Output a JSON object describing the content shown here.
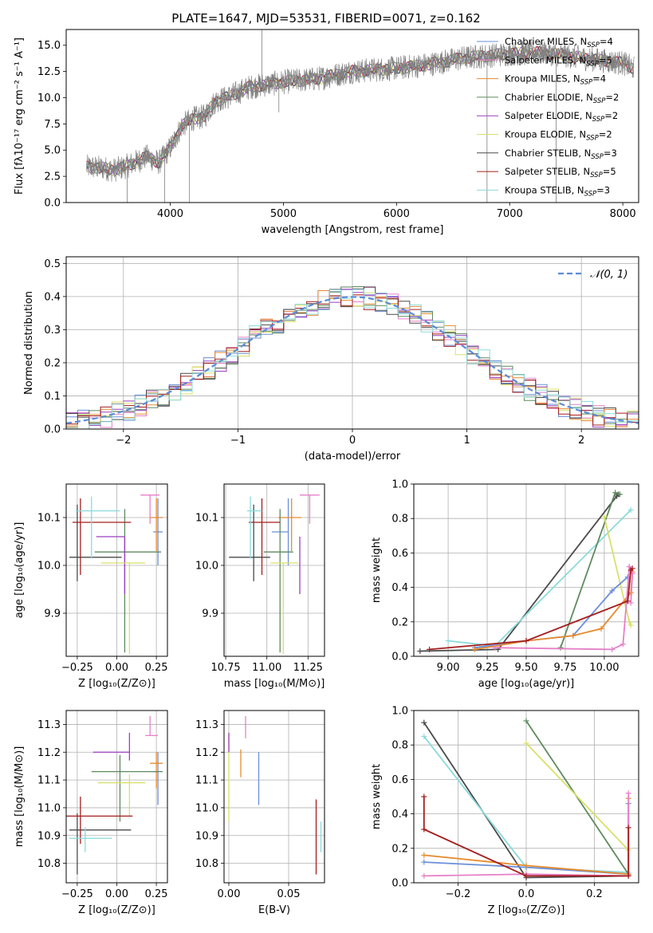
{
  "chart_data": [
    {
      "id": "spectrum",
      "type": "line",
      "title": "PLATE=1647, MJD=53531, FIBERID=0071, z=0.162",
      "xlabel": "wavelength [Angstrom, rest frame]",
      "ylabel": "Flux [fλ10⁻¹⁷ erg cm⁻² s⁻¹ A⁻¹]",
      "xlim": [
        3080,
        8140
      ],
      "ylim": [
        0,
        16.5
      ],
      "xticks": [
        "4000",
        "5000",
        "6000",
        "7000",
        "8000"
      ],
      "yticks": [
        "0.0",
        "2.5",
        "5.0",
        "7.5",
        "10.0",
        "12.5",
        "15.0"
      ],
      "grid": false,
      "legend_position": "right",
      "continuum": {
        "x": [
          3260,
          3400,
          3500,
          3600,
          3700,
          3800,
          3900,
          4000,
          4100,
          4200,
          4300,
          4400,
          4500,
          4700,
          5000,
          5300,
          5600,
          6000,
          6300,
          6600,
          7000,
          7300,
          7700,
          8000,
          8100
        ],
        "y": [
          3.4,
          3.3,
          3.1,
          3.4,
          3.9,
          4.4,
          3.8,
          5.2,
          7.3,
          8.0,
          8.2,
          9.7,
          10.0,
          11.0,
          11.5,
          11.8,
          12.5,
          12.8,
          13.2,
          13.8,
          14.2,
          14.3,
          13.7,
          13.3,
          12.8
        ]
      },
      "spikes": [
        {
          "x": 3950,
          "y": 0.0
        },
        {
          "x": 4170,
          "y": 0.0
        },
        {
          "x": 4810,
          "y": 16.5
        },
        {
          "x": 4960,
          "y": 8.6
        },
        {
          "x": 6800,
          "y": 0.0
        },
        {
          "x": 7410,
          "y": 0.0
        },
        {
          "x": 3620,
          "y": 0.0
        }
      ],
      "legend": [
        {
          "label": "Chabrier MILES, N",
          "sub": "SSP",
          "tail": "=4",
          "color": "#6a8fd8"
        },
        {
          "label": "Salpeter MILES, N",
          "sub": "SSP",
          "tail": "=5",
          "color": "#e77fc7"
        },
        {
          "label": "Kroupa MILES, N",
          "sub": "SSP",
          "tail": "=4",
          "color": "#e68a2e"
        },
        {
          "label": "Chabrier ELODIE, N",
          "sub": "SSP",
          "tail": "=2",
          "color": "#5e8a5e"
        },
        {
          "label": "Salpeter ELODIE, N",
          "sub": "SSP",
          "tail": "=2",
          "color": "#9b3fbf"
        },
        {
          "label": "Kroupa ELODIE, N",
          "sub": "SSP",
          "tail": "=2",
          "color": "#d8e06a"
        },
        {
          "label": "Chabrier STELIB, N",
          "sub": "SSP",
          "tail": "=3",
          "color": "#4a4a4a"
        },
        {
          "label": "Salpeter STELIB, N",
          "sub": "SSP",
          "tail": "=5",
          "color": "#a51d1d"
        },
        {
          "label": "Kroupa STELIB, N",
          "sub": "SSP",
          "tail": "=3",
          "color": "#8adada"
        }
      ]
    },
    {
      "id": "residuals",
      "type": "line",
      "xlabel": "(data-model)/error",
      "ylabel": "Normed distribution",
      "xlim": [
        -2.5,
        2.5
      ],
      "ylim": [
        0,
        0.52
      ],
      "xticks": [
        "−2",
        "−1",
        "0",
        "1",
        "2"
      ],
      "yticks": [
        "0.0",
        "0.1",
        "0.2",
        "0.3",
        "0.4",
        "0.5"
      ],
      "grid": true,
      "legend_label": "𝒩(0, 1)",
      "legend_position": "top-right",
      "gaussian": {
        "mean": 0.0,
        "sigma": 1.0,
        "peak": 0.3989
      },
      "bin_width": 0.1
    },
    {
      "id": "age-z",
      "type": "scatter",
      "xlabel": "Z [log₁₀(Z/Z⊙)]",
      "ylabel": "age  [log₁₀(age/yr)]",
      "xlim": [
        -0.32,
        0.32
      ],
      "ylim": [
        9.81,
        10.17
      ],
      "xticks": [
        "−0.25",
        "0.00",
        "0.25"
      ],
      "yticks": [
        "9.9",
        "10.0",
        "10.1"
      ],
      "grid": true,
      "points": [
        {
          "x": 0.26,
          "xerr": [
            0.03,
            0.03
          ],
          "y": 10.07,
          "yerr": [
            0.07,
            0.07
          ],
          "color": "#6a8fd8"
        },
        {
          "x": 0.21,
          "xerr": [
            0.06,
            0.06
          ],
          "y": 10.147,
          "yerr": [
            0.06,
            0.0
          ],
          "color": "#e77fc7"
        },
        {
          "x": 0.25,
          "xerr": [
            0.04,
            0.04
          ],
          "y": 10.1,
          "yerr": [
            0.07,
            0.04
          ],
          "color": "#e68a2e"
        },
        {
          "x": 0.05,
          "xerr": [
            0.19,
            0.23
          ],
          "y": 10.028,
          "yerr": [
            0.21,
            0.09
          ],
          "color": "#5e8a5e"
        },
        {
          "x": 0.05,
          "xerr": [
            0.18,
            0.0
          ],
          "y": 10.06,
          "yerr": [
            0.12,
            0.0
          ],
          "color": "#9b3fbf"
        },
        {
          "x": 0.08,
          "xerr": [
            0.18,
            0.1
          ],
          "y": 10.005,
          "yerr": [
            0.19,
            0.0
          ],
          "color": "#d8e06a"
        },
        {
          "x": -0.25,
          "xerr": [
            0.05,
            0.28
          ],
          "y": 10.017,
          "yerr": [
            0.05,
            0.11
          ],
          "color": "#4a4a4a"
        },
        {
          "x": -0.23,
          "xerr": [
            0.05,
            0.32
          ],
          "y": 10.09,
          "yerr": [
            0.11,
            0.05
          ],
          "color": "#a51d1d"
        },
        {
          "x": -0.16,
          "xerr": [
            0.1,
            0.18
          ],
          "y": 10.114,
          "yerr": [
            0.1,
            0.03
          ],
          "color": "#8adada"
        }
      ]
    },
    {
      "id": "age-mass",
      "type": "scatter",
      "xlabel": "mass [log₁₀(M/M⊙)]",
      "ylabel": "",
      "xlim": [
        10.74,
        11.35
      ],
      "ylim": [
        9.81,
        10.17
      ],
      "xticks": [
        "10.75",
        "11.00",
        "11.25"
      ],
      "yticks": [
        "9.9",
        "10.0",
        "10.1"
      ],
      "grid": true,
      "points": [
        {
          "x": 11.13,
          "xerr": [
            0.1,
            0.0
          ],
          "y": 10.07,
          "yerr": [
            0.07,
            0.07
          ],
          "color": "#6a8fd8"
        },
        {
          "x": 11.26,
          "xerr": [
            0.06,
            0.06
          ],
          "y": 10.147,
          "yerr": [
            0.06,
            0.0
          ],
          "color": "#e77fc7"
        },
        {
          "x": 11.15,
          "xerr": [
            0.08,
            0.06
          ],
          "y": 10.1,
          "yerr": [
            0.07,
            0.04
          ],
          "color": "#e68a2e"
        },
        {
          "x": 11.08,
          "xerr": [
            0.1,
            0.08
          ],
          "y": 10.028,
          "yerr": [
            0.21,
            0.09
          ],
          "color": "#5e8a5e"
        },
        {
          "x": 11.2,
          "xerr": [
            0.0,
            0.0
          ],
          "y": 10.06,
          "yerr": [
            0.12,
            0.0
          ],
          "color": "#9b3fbf"
        },
        {
          "x": 11.1,
          "xerr": [
            0.08,
            0.09
          ],
          "y": 10.005,
          "yerr": [
            0.19,
            0.0
          ],
          "color": "#d8e06a"
        },
        {
          "x": 10.92,
          "xerr": [
            0.15,
            0.1
          ],
          "y": 10.017,
          "yerr": [
            0.05,
            0.11
          ],
          "color": "#4a4a4a"
        },
        {
          "x": 10.97,
          "xerr": [
            0.08,
            0.11
          ],
          "y": 10.09,
          "yerr": [
            0.11,
            0.05
          ],
          "color": "#a51d1d"
        },
        {
          "x": 10.9,
          "xerr": [
            0.02,
            0.07
          ],
          "y": 10.114,
          "yerr": [
            0.1,
            0.03
          ],
          "color": "#8adada"
        }
      ]
    },
    {
      "id": "weight-age",
      "type": "line",
      "xlabel": "age  [log₁₀(age/yr)]",
      "ylabel": "mass weight",
      "xlim": [
        8.78,
        10.22
      ],
      "ylim": [
        0,
        1.0
      ],
      "xticks": [
        "9.00",
        "9.25",
        "9.50",
        "9.75",
        "10.00"
      ],
      "yticks": [
        "0.0",
        "0.2",
        "0.4",
        "0.6",
        "0.8",
        "1.0"
      ],
      "grid": true,
      "series": [
        {
          "color": "#4a4a4a",
          "x": [
            8.82,
            9.32,
            10.08,
            10.09
          ],
          "y": [
            0.03,
            0.04,
            0.93,
            0.94
          ]
        },
        {
          "color": "#8adada",
          "x": [
            9.0,
            9.3,
            10.17
          ],
          "y": [
            0.09,
            0.06,
            0.85
          ]
        },
        {
          "color": "#5e8a5e",
          "x": [
            9.72,
            10.07,
            10.1
          ],
          "y": [
            0.05,
            0.95,
            0.94
          ]
        },
        {
          "color": "#d8e06a",
          "x": [
            10.0,
            10.16,
            10.17
          ],
          "y": [
            0.81,
            0.2,
            0.18
          ]
        },
        {
          "color": "#6a8fd8",
          "x": [
            9.17,
            9.5,
            9.8,
            10.05,
            10.15
          ],
          "y": [
            0.05,
            0.09,
            0.12,
            0.38,
            0.46
          ]
        },
        {
          "color": "#e68a2e",
          "x": [
            9.17,
            9.5,
            9.8,
            9.98,
            10.17,
            10.18
          ],
          "y": [
            0.04,
            0.09,
            0.12,
            0.16,
            0.37,
            0.49
          ]
        },
        {
          "color": "#e77fc7",
          "x": [
            9.3,
            10.05,
            10.12,
            10.16,
            10.18,
            10.17
          ],
          "y": [
            0.05,
            0.04,
            0.07,
            0.52,
            0.48,
            0.31
          ]
        },
        {
          "color": "#a51d1d",
          "x": [
            8.88,
            9.5,
            10.15,
            10.17,
            10.18
          ],
          "y": [
            0.04,
            0.09,
            0.32,
            0.5,
            0.51
          ]
        }
      ]
    },
    {
      "id": "mass-z",
      "type": "scatter",
      "xlabel": "Z [log₁₀(Z/Z⊙)]",
      "ylabel": "mass [log₁₀(M/M⊙)]",
      "xlim": [
        -0.32,
        0.32
      ],
      "ylim": [
        10.73,
        11.35
      ],
      "xticks": [
        "−0.25",
        "0.00",
        "0.25"
      ],
      "yticks": [
        "10.8",
        "10.9",
        "11.0",
        "11.1",
        "11.2",
        "11.3"
      ],
      "grid": true,
      "points": [
        {
          "x": 0.26,
          "xerr": [
            0.03,
            0.0
          ],
          "y": 11.13,
          "yerr": [
            0.12,
            0.07
          ],
          "color": "#6a8fd8"
        },
        {
          "x": 0.21,
          "xerr": [
            0.03,
            0.05
          ],
          "y": 11.26,
          "yerr": [
            0.0,
            0.07
          ],
          "color": "#e77fc7"
        },
        {
          "x": 0.25,
          "xerr": [
            0.04,
            0.04
          ],
          "y": 11.16,
          "yerr": [
            0.09,
            0.04
          ],
          "color": "#e68a2e"
        },
        {
          "x": 0.02,
          "xerr": [
            0.18,
            0.27
          ],
          "y": 11.13,
          "yerr": [
            0.18,
            0.06
          ],
          "color": "#5e8a5e"
        },
        {
          "x": 0.08,
          "xerr": [
            0.23,
            0.0
          ],
          "y": 11.2,
          "yerr": [
            0.03,
            0.07
          ],
          "color": "#9b3fbf"
        },
        {
          "x": 0.08,
          "xerr": [
            0.2,
            0.1
          ],
          "y": 11.09,
          "yerr": [
            0.12,
            0.03
          ],
          "color": "#d8e06a"
        },
        {
          "x": -0.25,
          "xerr": [
            0.05,
            0.34
          ],
          "y": 10.92,
          "yerr": [
            0.16,
            0.06
          ],
          "color": "#4a4a4a"
        },
        {
          "x": -0.23,
          "xerr": [
            0.1,
            0.33
          ],
          "y": 10.97,
          "yerr": [
            0.1,
            0.07
          ],
          "color": "#a51d1d"
        },
        {
          "x": -0.2,
          "xerr": [
            0.1,
            0.17
          ],
          "y": 10.89,
          "yerr": [
            0.05,
            0.04
          ],
          "color": "#8adada"
        }
      ]
    },
    {
      "id": "mass-ebv",
      "type": "scatter",
      "xlabel": "E(B-V)",
      "ylabel": "",
      "xlim": [
        -0.004,
        0.08
      ],
      "ylim": [
        10.73,
        11.35
      ],
      "xticks": [
        "0.00",
        "0.05"
      ],
      "yticks": [
        "10.8",
        "10.9",
        "11.0",
        "11.1",
        "11.2",
        "11.3"
      ],
      "grid": true,
      "points": [
        {
          "x": 0.0,
          "xerr": [
            0.0,
            0.0
          ],
          "y": 11.1,
          "yerr": [
            0.15,
            0.17
          ],
          "color": "#d8e06a"
        },
        {
          "x": 0.0,
          "xerr": [
            0.0,
            0.0
          ],
          "y": 11.2,
          "yerr": [
            0.0,
            0.07
          ],
          "color": "#9b3fbf"
        },
        {
          "x": 0.01,
          "xerr": [
            0.0,
            0.0
          ],
          "y": 11.11,
          "yerr": [
            0.0,
            0.1
          ],
          "color": "#e68a2e"
        },
        {
          "x": 0.014,
          "xerr": [
            0.0,
            0.0
          ],
          "y": 11.25,
          "yerr": [
            0.0,
            0.08
          ],
          "color": "#e77fc7"
        },
        {
          "x": 0.025,
          "xerr": [
            0.0,
            0.0
          ],
          "y": 11.1,
          "yerr": [
            0.09,
            0.1
          ],
          "color": "#6a8fd8"
        },
        {
          "x": 0.073,
          "xerr": [
            0.0,
            0.0
          ],
          "y": 10.93,
          "yerr": [
            0.17,
            0.1
          ],
          "color": "#a51d1d"
        },
        {
          "x": 0.077,
          "xerr": [
            0.0,
            0.0
          ],
          "y": 10.89,
          "yerr": [
            0.05,
            0.06
          ],
          "color": "#8adada"
        }
      ]
    },
    {
      "id": "weight-z",
      "type": "line",
      "xlabel": "Z [log₁₀(Z/Z⊙)]",
      "ylabel": "mass weight",
      "xlim": [
        -0.33,
        0.33
      ],
      "ylim": [
        0,
        1.0
      ],
      "xticks": [
        "−0.2",
        "0.0",
        "0.2"
      ],
      "yticks": [
        "0.0",
        "0.2",
        "0.4",
        "0.6",
        "0.8",
        "1.0"
      ],
      "grid": true,
      "series": [
        {
          "color": "#4a4a4a",
          "x": [
            -0.3,
            0.0,
            0.3
          ],
          "y": [
            0.93,
            0.03,
            0.04
          ]
        },
        {
          "color": "#8adada",
          "x": [
            -0.3,
            0.0,
            0.3
          ],
          "y": [
            0.85,
            0.09,
            0.06
          ]
        },
        {
          "color": "#5e8a5e",
          "x": [
            0.0,
            0.3
          ],
          "y": [
            0.94,
            0.05
          ]
        },
        {
          "color": "#d8e06a",
          "x": [
            0.0,
            0.3
          ],
          "y": [
            0.81,
            0.19
          ]
        },
        {
          "color": "#6a8fd8",
          "x": [
            -0.3,
            0.0,
            0.3,
            0.3
          ],
          "y": [
            0.12,
            0.09,
            0.05,
            0.46
          ]
        },
        {
          "color": "#e68a2e",
          "x": [
            -0.3,
            0.0,
            0.3,
            0.3
          ],
          "y": [
            0.16,
            0.1,
            0.05,
            0.49
          ]
        },
        {
          "color": "#e77fc7",
          "x": [
            -0.3,
            0.0,
            0.3,
            0.3
          ],
          "y": [
            0.04,
            0.05,
            0.04,
            0.52
          ]
        },
        {
          "color": "#a51d1d",
          "x": [
            -0.3,
            -0.3,
            0.0,
            0.3,
            0.3
          ],
          "y": [
            0.5,
            0.31,
            0.04,
            0.04,
            0.32
          ]
        }
      ]
    }
  ]
}
